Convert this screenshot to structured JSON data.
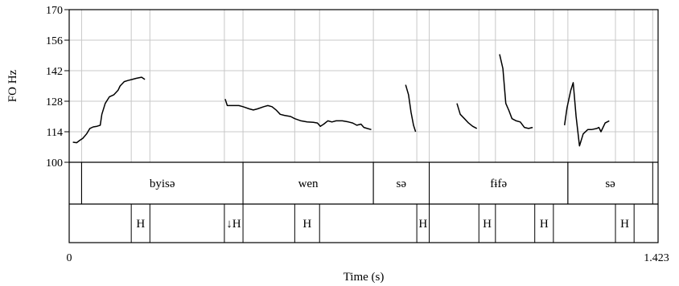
{
  "chart_data": {
    "type": "line",
    "ylabel": "FO Hz",
    "xlabel": "Time (s)",
    "ylim": [
      100,
      170
    ],
    "y_ticks": [
      100,
      114,
      128,
      142,
      156,
      170
    ],
    "xlim": [
      0,
      1.423
    ],
    "x_tick_labels": [
      "0",
      "1.423"
    ],
    "grid": true,
    "series": [
      {
        "segments": [
          [
            [
              0.009,
              109.2
            ],
            [
              0.018,
              109
            ],
            [
              0.025,
              110
            ],
            [
              0.033,
              111
            ],
            [
              0.042,
              113
            ],
            [
              0.05,
              115.5
            ],
            [
              0.058,
              116.2
            ],
            [
              0.067,
              116.5
            ],
            [
              0.075,
              117
            ],
            [
              0.079,
              122
            ],
            [
              0.087,
              127
            ],
            [
              0.097,
              130
            ],
            [
              0.108,
              131
            ],
            [
              0.118,
              133
            ],
            [
              0.123,
              135
            ],
            [
              0.133,
              137
            ],
            [
              0.142,
              137.5
            ],
            [
              0.152,
              138
            ],
            [
              0.162,
              138.5
            ],
            [
              0.175,
              139
            ],
            [
              0.183,
              138
            ]
          ],
          [
            [
              0.377,
              129
            ],
            [
              0.382,
              126
            ],
            [
              0.395,
              126
            ],
            [
              0.41,
              126
            ],
            [
              0.42,
              125.5
            ],
            [
              0.435,
              124.5
            ],
            [
              0.445,
              124
            ],
            [
              0.455,
              124.5
            ],
            [
              0.47,
              125.5
            ],
            [
              0.48,
              126
            ],
            [
              0.49,
              125.5
            ],
            [
              0.5,
              124
            ],
            [
              0.51,
              122
            ],
            [
              0.52,
              121.5
            ],
            [
              0.535,
              121
            ],
            [
              0.545,
              120
            ],
            [
              0.56,
              119
            ],
            [
              0.575,
              118.5
            ],
            [
              0.59,
              118.3
            ],
            [
              0.6,
              118
            ],
            [
              0.607,
              116.5
            ],
            [
              0.615,
              117.5
            ],
            [
              0.625,
              119
            ],
            [
              0.635,
              118.5
            ],
            [
              0.645,
              119
            ],
            [
              0.66,
              119
            ],
            [
              0.675,
              118.5
            ],
            [
              0.685,
              118
            ],
            [
              0.695,
              117
            ],
            [
              0.705,
              117.5
            ],
            [
              0.712,
              116
            ],
            [
              0.72,
              115.5
            ],
            [
              0.73,
              115
            ]
          ],
          [
            [
              0.813,
              135.5
            ],
            [
              0.82,
              131
            ],
            [
              0.826,
              123
            ],
            [
              0.832,
              117
            ],
            [
              0.837,
              114
            ]
          ],
          [
            [
              0.937,
              127
            ],
            [
              0.945,
              122
            ],
            [
              0.955,
              120
            ],
            [
              0.965,
              118
            ],
            [
              0.975,
              116.5
            ],
            [
              0.985,
              115.5
            ]
          ],
          [
            [
              1.04,
              149.5
            ],
            [
              1.048,
              143
            ],
            [
              1.055,
              127
            ],
            [
              1.062,
              124
            ],
            [
              1.07,
              120
            ],
            [
              1.08,
              119
            ],
            [
              1.09,
              118.5
            ],
            [
              1.1,
              116
            ],
            [
              1.11,
              115.5
            ],
            [
              1.12,
              116
            ]
          ],
          [
            [
              1.197,
              117
            ],
            [
              1.203,
              125
            ],
            [
              1.212,
              133
            ],
            [
              1.218,
              136.5
            ],
            [
              1.225,
              121
            ],
            [
              1.233,
              107.5
            ],
            [
              1.242,
              113
            ],
            [
              1.253,
              115
            ],
            [
              1.262,
              115
            ],
            [
              1.275,
              115.5
            ],
            [
              1.28,
              116
            ],
            [
              1.285,
              114
            ],
            [
              1.295,
              118
            ],
            [
              1.305,
              119
            ]
          ]
        ]
      }
    ]
  },
  "tiers": [
    {
      "name": "words",
      "intervals": [
        {
          "start": 0.0,
          "end": 0.03,
          "label": ""
        },
        {
          "start": 0.03,
          "end": 0.42,
          "label": "byisə"
        },
        {
          "start": 0.42,
          "end": 0.735,
          "label": "wen"
        },
        {
          "start": 0.735,
          "end": 0.87,
          "label": "sə"
        },
        {
          "start": 0.87,
          "end": 1.205,
          "label": "fɨfə"
        },
        {
          "start": 1.205,
          "end": 1.41,
          "label": "sə"
        }
      ]
    },
    {
      "name": "tones",
      "intervals": [
        {
          "start": 0.15,
          "end": 0.195,
          "label": "H"
        },
        {
          "start": 0.375,
          "end": 0.42,
          "label": "↓H"
        },
        {
          "start": 0.545,
          "end": 0.605,
          "label": "H"
        },
        {
          "start": 0.84,
          "end": 0.87,
          "label": "H"
        },
        {
          "start": 0.99,
          "end": 1.03,
          "label": "H"
        },
        {
          "start": 1.125,
          "end": 1.17,
          "label": "H"
        },
        {
          "start": 1.32,
          "end": 1.365,
          "label": "H"
        }
      ]
    }
  ]
}
